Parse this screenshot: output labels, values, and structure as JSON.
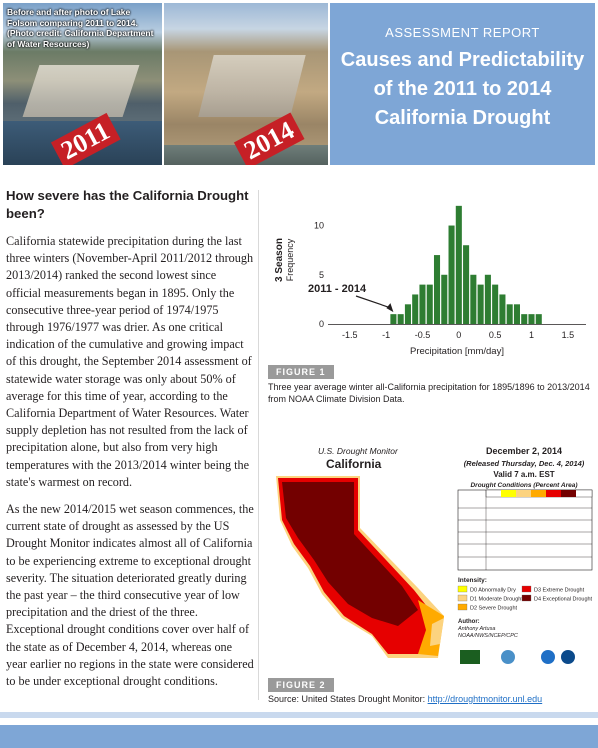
{
  "header": {
    "photo_caption": "Before and after photo of Lake Folsom comparing 2011 to 2014. (Photo credit: California Department of Water Resources)",
    "year_left": "2011",
    "year_right": "2014",
    "kicker": "ASSESSMENT REPORT",
    "title_line1": "Causes and Predictability",
    "title_line2": "of the 2011 to 2014",
    "title_line3": "California Drought"
  },
  "article": {
    "heading": "How severe has the California Drought been?",
    "para1": "California statewide precipitation during the last three winters (November-April 2011/2012 through 2013/2014) ranked the second lowest since official measurements began in 1895. Only the consecutive three-year period of 1974/1975 through 1976/1977 was drier. As one critical indication of the cumulative and growing impact of this drought, the September 2014 assessment of statewide water storage was only about 50% of average for this time of year, according to the California Department of Water Resources. Water supply depletion has not resulted from the lack of precipitation alone, but also from very high temperatures with the 2013/2014 winter being the state's warmest on record.",
    "para2": "As the new 2014/2015 wet season commences, the current state of drought as assessed by the US Drought Monitor indicates almost all of California to be experiencing extreme to exceptional drought severity. The situation deteriorated greatly during the past year – the third consecutive year of low precipitation and the driest of the three. Exceptional drought conditions cover over half of the state as of December 4, 2014, whereas one year earlier no regions in the state were considered to be under exceptional drought conditions."
  },
  "figure1": {
    "label": "FIGURE 1",
    "caption": "Three year average winter all-California precipitation for 1895/1896 to 2013/2014 from NOAA Climate Division Data.",
    "annotation": "2011 - 2014"
  },
  "chart_data": {
    "type": "bar",
    "title": "",
    "xlabel": "Precipitation [mm/day]",
    "ylabel": "Frequency",
    "ylabel_prefix": "3 Season",
    "xlim": [
      -1.8,
      1.75
    ],
    "ylim": [
      0,
      13
    ],
    "xticks": [
      "-1.5",
      "-1",
      "-0.5",
      "0",
      "0.5",
      "1",
      "1.5"
    ],
    "yticks": [
      "0",
      "5",
      "10"
    ],
    "bar_color": "#2e7d32",
    "bin_width": 0.1,
    "x": [
      -0.9,
      -0.8,
      -0.7,
      -0.6,
      -0.5,
      -0.4,
      -0.3,
      -0.2,
      -0.1,
      0.0,
      0.1,
      0.2,
      0.3,
      0.4,
      0.5,
      0.6,
      0.7,
      0.8,
      0.9,
      1.0,
      1.1
    ],
    "values": [
      1,
      1,
      2,
      3,
      4,
      4,
      7,
      5,
      10,
      12,
      8,
      5,
      4,
      5,
      4,
      3,
      2,
      2,
      1,
      1,
      1
    ]
  },
  "figure2": {
    "label": "FIGURE 2",
    "caption_prefix": "Source: United States Drought Monitor: ",
    "caption_link": "http://droughtmonitor.unl.edu",
    "monitor_title": "U.S. Drought Monitor",
    "state": "California",
    "date": "December 2, 2014",
    "released": "(Released Thursday, Dec. 4, 2014)",
    "valid": "Valid 7 a.m. EST",
    "table_title": "Drought Conditions (Percent Area)",
    "intensity_label": "Intensity:",
    "legend": [
      "D0 Abnormally Dry",
      "D1 Moderate Drought",
      "D2 Severe Drought",
      "D3 Extreme Drought",
      "D4 Exceptional Drought"
    ],
    "legend_colors": [
      "#ffff00",
      "#fcd37f",
      "#ffaa00",
      "#e60000",
      "#730000"
    ],
    "author_label": "Author:",
    "author_name": "Anthony Artusa",
    "author_org": "NOAA/NWS/NCEP/CPC"
  }
}
